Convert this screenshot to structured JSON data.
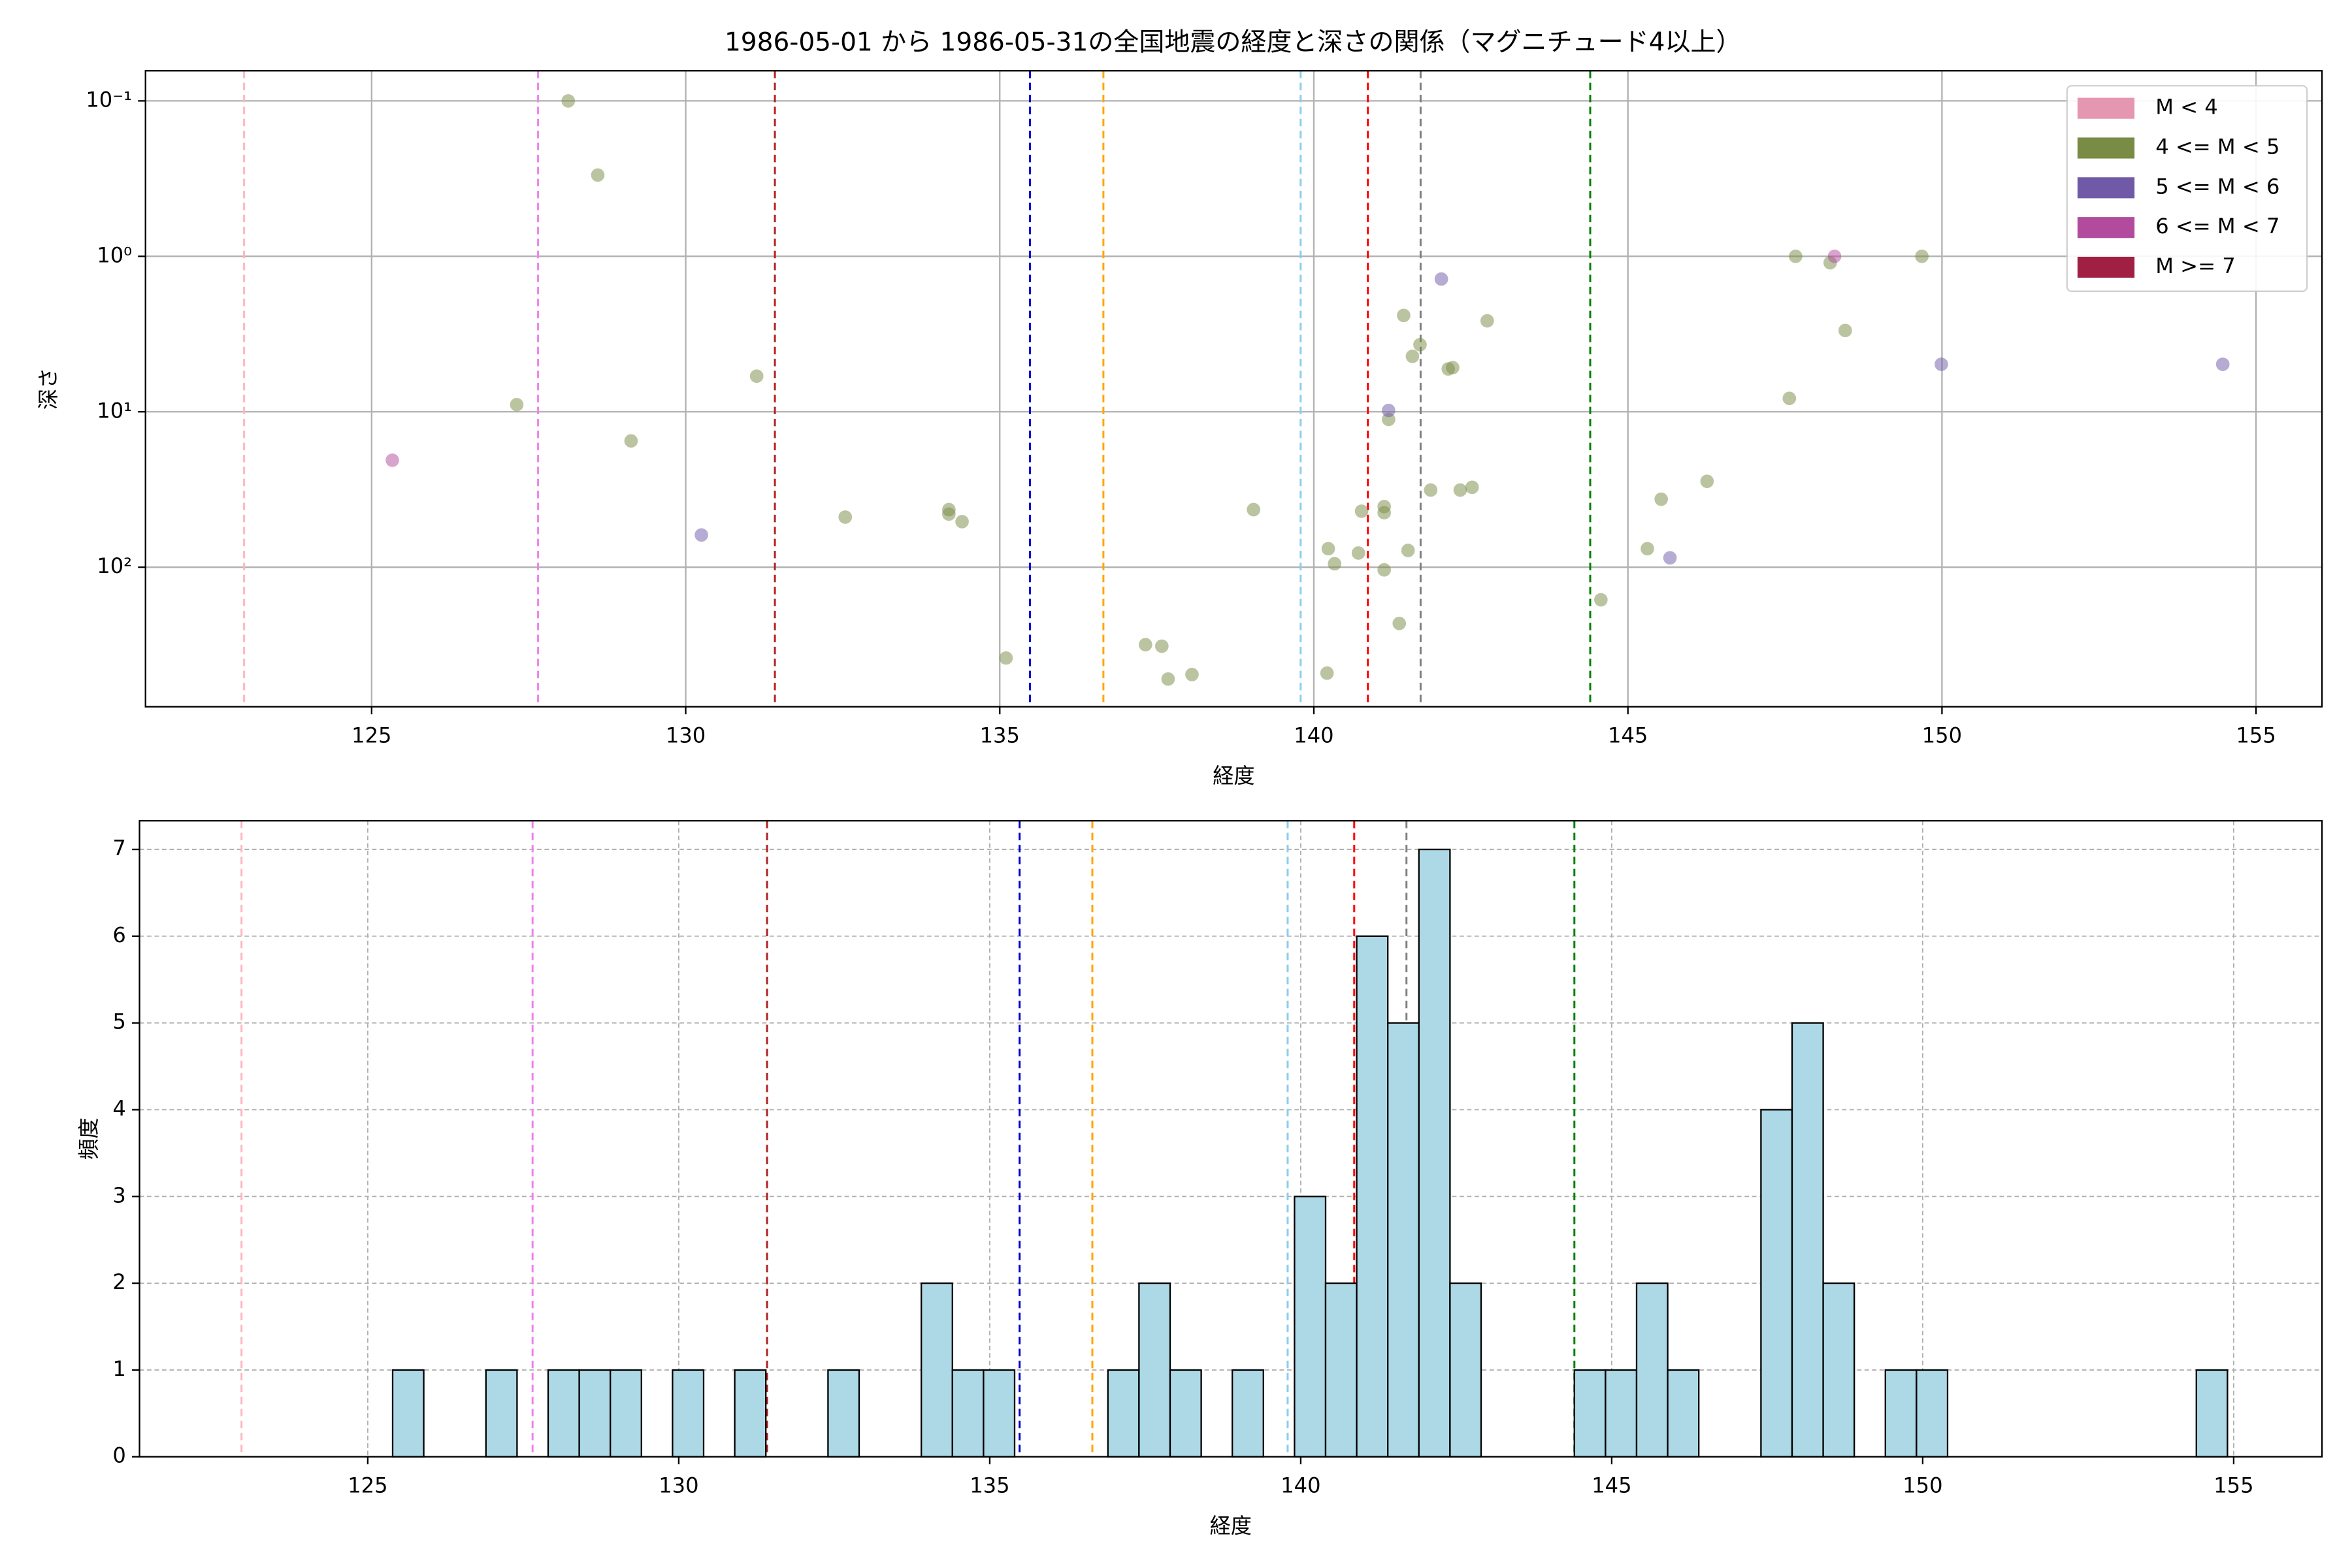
{
  "chart_data": [
    {
      "type": "scatter",
      "title": "1986-05-01 から 1986-05-31の全国地震の経度と深さの関係（マグニチュード4以上）",
      "x_label": "経度",
      "y_label": "深さ",
      "xlim": [
        121.4,
        156.05
      ],
      "xticks": [
        125,
        130,
        135,
        140,
        145,
        150,
        155
      ],
      "ylim": [
        0.064,
        790
      ],
      "y_scale": "log",
      "y_inverted": true,
      "yticks": [
        {
          "value": 0.1,
          "label": "10⁻¹"
        },
        {
          "value": 1,
          "label": "10⁰"
        },
        {
          "value": 10,
          "label": "10¹"
        },
        {
          "value": 100,
          "label": "10²"
        }
      ],
      "grid": true,
      "legend_position": "upper right",
      "vlines_x": [
        122.97,
        127.65,
        131.42,
        135.48,
        136.65,
        139.79,
        140.86,
        141.7,
        144.4
      ],
      "vlines_colors": [
        "#ffb6c1",
        "#ee82ee",
        "#b22222",
        "#0000cd",
        "#ffa500",
        "#87ceeb",
        "#ff0000",
        "#808080",
        "#008000"
      ],
      "series": [
        {
          "name": "M < 4",
          "color": "#e597b2",
          "x": [],
          "values": []
        },
        {
          "name": "4 <= M < 5",
          "color": "#7a8b45",
          "x": [
            127.31,
            128.13,
            128.6,
            129.13,
            131.13,
            132.54,
            134.19,
            134.19,
            134.4,
            135.1,
            137.32,
            137.58,
            137.68,
            138.06,
            139.04,
            140.21,
            140.23,
            140.33,
            140.71,
            140.76,
            141.12,
            141.12,
            141.12,
            141.19,
            141.36,
            141.43,
            141.5,
            141.57,
            141.69,
            141.86,
            142.14,
            142.21,
            142.33,
            142.52,
            142.76,
            144.57,
            145.31,
            145.53,
            146.26,
            147.57,
            147.67,
            148.22,
            148.46,
            149.68
          ],
          "values": [
            9.0,
            0.1,
            0.3,
            15.4,
            5.9,
            47.6,
            42.6,
            45.5,
            50.9,
            384,
            315,
            322,
            524,
            490,
            42.6,
            480,
            76,
            95,
            81,
            43.6,
            40.7,
            44.6,
            104,
            11.2,
            230,
            2.4,
            78,
            4.4,
            3.7,
            31.9,
            5.3,
            5.2,
            31.9,
            30.6,
            2.6,
            162,
            76,
            36.5,
            28,
            8.2,
            1.0,
            1.1,
            3.0,
            1.0
          ]
        },
        {
          "name": "5 <= M < 6",
          "color": "#7059a6",
          "x": [
            130.25,
            141.19,
            142.03,
            145.67,
            149.99,
            154.47
          ],
          "values": [
            62,
            9.8,
            1.4,
            87,
            4.95,
            4.95
          ]
        },
        {
          "name": "6 <= M < 7",
          "color": "#b24b9e",
          "x": [
            125.33,
            148.29
          ],
          "values": [
            20.5,
            1.0
          ]
        },
        {
          "name": "M >= 7",
          "color": "#a01f42",
          "x": [],
          "values": []
        }
      ]
    },
    {
      "type": "histogram",
      "x_label": "経度",
      "y_label": "頻度",
      "xlim": [
        121.33,
        156.42
      ],
      "xticks": [
        125,
        130,
        135,
        140,
        145,
        150,
        155
      ],
      "ylim": [
        0,
        7.33
      ],
      "yticks": [
        0,
        1,
        2,
        3,
        4,
        5,
        6,
        7
      ],
      "grid": true,
      "color": "#add8e6",
      "vlines_x": [
        122.97,
        127.65,
        131.42,
        135.48,
        136.65,
        139.79,
        140.86,
        141.7,
        144.4
      ],
      "vlines_colors": [
        "#ffb6c1",
        "#ee82ee",
        "#b22222",
        "#0000cd",
        "#ffa500",
        "#87ceeb",
        "#ff0000",
        "#808080",
        "#008000"
      ],
      "bins": [
        125.4,
        125.9,
        126.4,
        126.9,
        127.4,
        127.9,
        128.4,
        128.9,
        129.4,
        129.9,
        130.4,
        130.9,
        131.4,
        131.9,
        132.4,
        132.9,
        133.4,
        133.9,
        134.4,
        134.9,
        135.4,
        135.9,
        136.4,
        136.9,
        137.4,
        137.9,
        138.4,
        138.9,
        139.4,
        139.9,
        140.4,
        140.9,
        141.4,
        141.9,
        142.4,
        142.9,
        143.4,
        143.9,
        144.4,
        144.9,
        145.4,
        145.9,
        146.4,
        146.9,
        147.4,
        147.9,
        148.4,
        148.9,
        149.4,
        149.9,
        150.4,
        150.9,
        151.4,
        151.9,
        152.4,
        152.9,
        153.4,
        153.9,
        154.4,
        154.9
      ],
      "values": [
        1,
        0,
        0,
        1,
        0,
        1,
        1,
        1,
        0,
        1,
        0,
        1,
        0,
        0,
        1,
        0,
        0,
        2,
        1,
        1,
        0,
        0,
        0,
        1,
        2,
        1,
        0,
        1,
        0,
        3,
        2,
        6,
        5,
        7,
        2,
        0,
        0,
        0,
        1,
        1,
        2,
        1,
        0,
        0,
        4,
        5,
        2,
        0,
        1,
        1,
        0,
        0,
        0,
        0,
        0,
        0,
        0,
        0,
        1
      ]
    }
  ]
}
